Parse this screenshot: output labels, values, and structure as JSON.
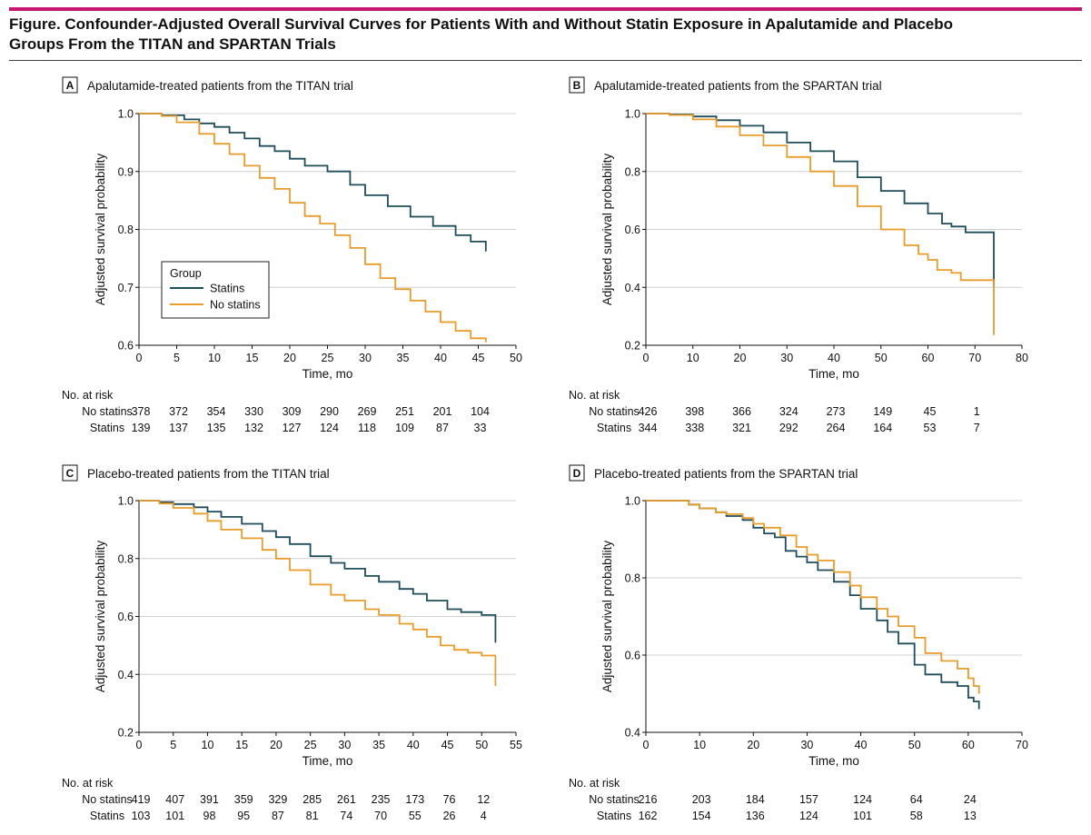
{
  "figure": {
    "title": "Figure. Confounder-Adjusted Overall Survival Curves for Patients With and Without Statin Exposure in Apalutamide and Placebo Groups From the TITAN and SPARTAN Trials"
  },
  "colors": {
    "statins": "#1f4e5a",
    "no_statins": "#e89c2a",
    "accent": "#c4176f",
    "grid": "#d0d0d0"
  },
  "legend": {
    "title": "Group",
    "items": [
      "Statins",
      "No statins"
    ]
  },
  "chart_data": [
    {
      "type": "line",
      "letter": "A",
      "title": "Apalutamide-treated patients from the TITAN trial",
      "xlabel": "Time, mo",
      "ylabel": "Adjusted survival probability",
      "xlim": [
        0,
        50
      ],
      "ylim": [
        0.6,
        1.0
      ],
      "xticks": [
        0,
        5,
        10,
        15,
        20,
        25,
        30,
        35,
        40,
        45,
        50
      ],
      "yticks": [
        0.6,
        0.7,
        0.8,
        0.9,
        1.0
      ],
      "grid": true,
      "legend_position": "lower-left",
      "series": [
        {
          "name": "Statins",
          "x": [
            0,
            3,
            6,
            8,
            10,
            12,
            14,
            16,
            18,
            20,
            22,
            25,
            28,
            30,
            33,
            36,
            39,
            42,
            44,
            46
          ],
          "values": [
            1.0,
            0.997,
            0.99,
            0.983,
            0.977,
            0.967,
            0.957,
            0.944,
            0.935,
            0.922,
            0.91,
            0.9,
            0.877,
            0.859,
            0.84,
            0.822,
            0.806,
            0.79,
            0.779,
            0.765
          ],
          "drop_end": 0.762
        },
        {
          "name": "No statins",
          "x": [
            0,
            3,
            5,
            8,
            10,
            12,
            14,
            16,
            18,
            20,
            22,
            24,
            26,
            28,
            30,
            32,
            34,
            36,
            38,
            40,
            42,
            44,
            46
          ],
          "values": [
            1.0,
            0.996,
            0.985,
            0.965,
            0.948,
            0.93,
            0.91,
            0.889,
            0.87,
            0.846,
            0.823,
            0.81,
            0.79,
            0.768,
            0.74,
            0.716,
            0.697,
            0.677,
            0.658,
            0.64,
            0.625,
            0.612,
            0.605
          ],
          "drop_end": null
        }
      ],
      "risk_x": [
        0,
        5,
        10,
        15,
        20,
        25,
        30,
        35,
        40,
        45
      ],
      "risk": [
        {
          "label": "No statins",
          "values": [
            "378",
            "372",
            "354",
            "330",
            "309",
            "290",
            "269",
            "251",
            "201",
            "104"
          ]
        },
        {
          "label": "Statins",
          "values": [
            "139",
            "137",
            "135",
            "132",
            "127",
            "124",
            "118",
            "109",
            "87",
            "33"
          ]
        }
      ]
    },
    {
      "type": "line",
      "letter": "B",
      "title": "Apalutamide-treated patients from the SPARTAN trial",
      "xlabel": "Time, mo",
      "ylabel": "Adjusted survival probability",
      "xlim": [
        0,
        80
      ],
      "ylim": [
        0.2,
        1.0
      ],
      "xticks": [
        0,
        10,
        20,
        30,
        40,
        50,
        60,
        70,
        80
      ],
      "yticks": [
        0.2,
        0.4,
        0.6,
        0.8,
        1.0
      ],
      "grid": true,
      "series": [
        {
          "name": "Statins",
          "x": [
            0,
            5,
            10,
            15,
            20,
            25,
            30,
            35,
            40,
            45,
            50,
            55,
            60,
            63,
            65,
            68,
            74
          ],
          "values": [
            1.0,
            0.997,
            0.99,
            0.977,
            0.958,
            0.935,
            0.9,
            0.87,
            0.835,
            0.78,
            0.733,
            0.69,
            0.655,
            0.62,
            0.61,
            0.59,
            0.585
          ],
          "drop_end": 0.4
        },
        {
          "name": "No statins",
          "x": [
            0,
            5,
            10,
            15,
            20,
            25,
            30,
            35,
            40,
            45,
            50,
            55,
            58,
            60,
            62,
            65,
            67,
            74
          ],
          "values": [
            1.0,
            0.995,
            0.98,
            0.955,
            0.925,
            0.89,
            0.85,
            0.8,
            0.75,
            0.68,
            0.6,
            0.545,
            0.515,
            0.495,
            0.46,
            0.45,
            0.425,
            0.425
          ],
          "drop_end": 0.235
        }
      ],
      "risk_x": [
        0,
        10,
        20,
        30,
        40,
        50,
        60,
        70
      ],
      "risk": [
        {
          "label": "No statins",
          "values": [
            "426",
            "398",
            "366",
            "324",
            "273",
            "149",
            "45",
            "1"
          ]
        },
        {
          "label": "Statins",
          "values": [
            "344",
            "338",
            "321",
            "292",
            "264",
            "164",
            "53",
            "7"
          ]
        }
      ]
    },
    {
      "type": "line",
      "letter": "C",
      "title": "Placebo-treated patients from the TITAN trial",
      "xlabel": "Time, mo",
      "ylabel": "Adjusted survival probability",
      "xlim": [
        0,
        55
      ],
      "ylim": [
        0.2,
        1.0
      ],
      "xticks": [
        0,
        5,
        10,
        15,
        20,
        25,
        30,
        35,
        40,
        45,
        50,
        55
      ],
      "yticks": [
        0.2,
        0.4,
        0.6,
        0.8,
        1.0
      ],
      "grid": true,
      "series": [
        {
          "name": "Statins",
          "x": [
            0,
            3,
            5,
            8,
            10,
            12,
            15,
            18,
            20,
            22,
            25,
            28,
            30,
            33,
            35,
            38,
            40,
            42,
            45,
            47,
            50,
            52
          ],
          "values": [
            1.0,
            0.995,
            0.988,
            0.977,
            0.962,
            0.944,
            0.92,
            0.895,
            0.874,
            0.85,
            0.808,
            0.785,
            0.765,
            0.74,
            0.72,
            0.695,
            0.678,
            0.655,
            0.625,
            0.615,
            0.605,
            0.605
          ],
          "drop_end": 0.51
        },
        {
          "name": "No statins",
          "x": [
            0,
            3,
            5,
            8,
            10,
            12,
            15,
            18,
            20,
            22,
            25,
            28,
            30,
            33,
            35,
            38,
            40,
            42,
            44,
            46,
            48,
            50,
            52
          ],
          "values": [
            1.0,
            0.99,
            0.975,
            0.955,
            0.93,
            0.9,
            0.87,
            0.83,
            0.8,
            0.76,
            0.71,
            0.675,
            0.655,
            0.625,
            0.605,
            0.575,
            0.555,
            0.53,
            0.5,
            0.485,
            0.475,
            0.465,
            0.465
          ],
          "drop_end": 0.36
        }
      ],
      "risk_x": [
        0,
        5,
        10,
        15,
        20,
        25,
        30,
        35,
        40,
        45,
        50
      ],
      "risk": [
        {
          "label": "No statins",
          "values": [
            "419",
            "407",
            "391",
            "359",
            "329",
            "285",
            "261",
            "235",
            "173",
            "76",
            "12"
          ]
        },
        {
          "label": "Statins",
          "values": [
            "103",
            "101",
            "98",
            "95",
            "87",
            "81",
            "74",
            "70",
            "55",
            "26",
            "4"
          ]
        }
      ]
    },
    {
      "type": "line",
      "letter": "D",
      "title": "Placebo-treated patients from the SPARTAN trial",
      "xlabel": "Time, mo",
      "ylabel": "Adjusted survival probability",
      "xlim": [
        0,
        70
      ],
      "ylim": [
        0.4,
        1.0
      ],
      "xticks": [
        0,
        10,
        20,
        30,
        40,
        50,
        60,
        70
      ],
      "yticks": [
        0.4,
        0.6,
        0.8,
        1.0
      ],
      "grid": true,
      "series": [
        {
          "name": "Statins",
          "x": [
            0,
            5,
            8,
            10,
            13,
            15,
            18,
            20,
            22,
            24,
            26,
            28,
            30,
            32,
            35,
            38,
            40,
            43,
            45,
            47,
            50,
            52,
            55,
            58,
            60,
            61,
            62
          ],
          "values": [
            1.0,
            1.0,
            0.99,
            0.98,
            0.97,
            0.96,
            0.95,
            0.93,
            0.915,
            0.905,
            0.87,
            0.855,
            0.84,
            0.82,
            0.79,
            0.755,
            0.72,
            0.69,
            0.66,
            0.63,
            0.575,
            0.55,
            0.53,
            0.52,
            0.49,
            0.48,
            0.47
          ],
          "drop_end": 0.46
        },
        {
          "name": "No statins",
          "x": [
            0,
            5,
            8,
            10,
            13,
            15,
            18,
            20,
            22,
            25,
            28,
            30,
            32,
            35,
            38,
            40,
            43,
            45,
            47,
            50,
            52,
            55,
            58,
            60,
            61,
            62
          ],
          "values": [
            1.0,
            1.0,
            0.99,
            0.98,
            0.97,
            0.965,
            0.955,
            0.94,
            0.93,
            0.91,
            0.88,
            0.86,
            0.845,
            0.815,
            0.78,
            0.75,
            0.72,
            0.7,
            0.675,
            0.645,
            0.605,
            0.585,
            0.565,
            0.54,
            0.52,
            0.51
          ],
          "drop_end": 0.5
        }
      ],
      "risk_x": [
        0,
        10,
        20,
        30,
        40,
        50,
        60
      ],
      "risk": [
        {
          "label": "No statins",
          "values": [
            "216",
            "203",
            "184",
            "157",
            "124",
            "64",
            "24"
          ]
        },
        {
          "label": "Statins",
          "values": [
            "162",
            "154",
            "136",
            "124",
            "101",
            "58",
            "13"
          ]
        }
      ]
    }
  ],
  "risk_table_title": "No. at risk"
}
